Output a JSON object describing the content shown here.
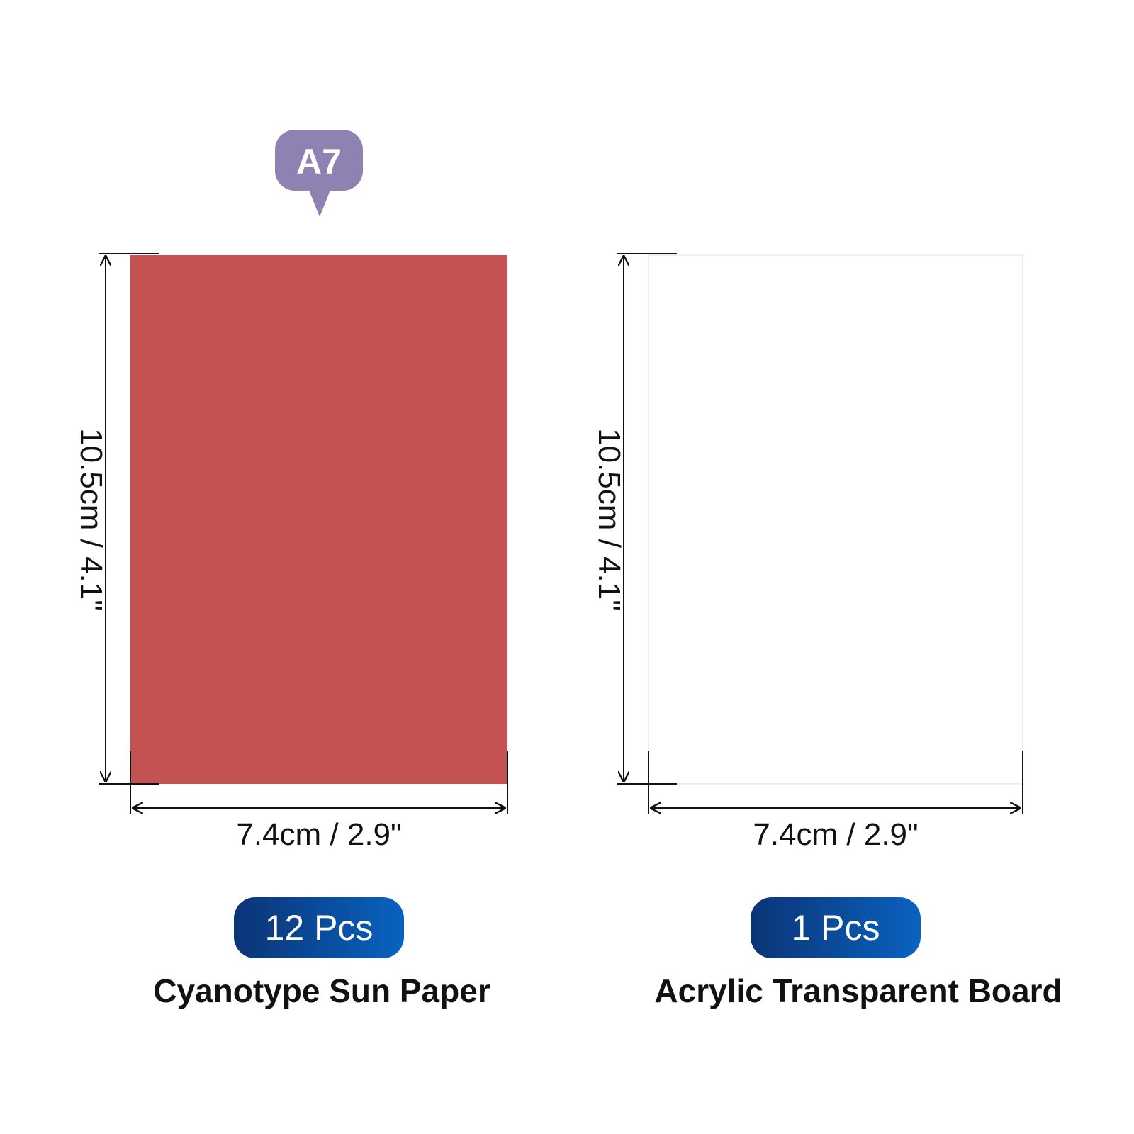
{
  "badge": "A7",
  "items": [
    {
      "height": "10.5cm / 4.1\"",
      "width": "7.4cm / 2.9\"",
      "count": "12 Pcs",
      "name": "Cyanotype Sun Paper"
    },
    {
      "height": "10.5cm / 4.1\"",
      "width": "7.4cm / 2.9\"",
      "count": "1 Pcs",
      "name": "Acrylic Transparent Board"
    }
  ]
}
